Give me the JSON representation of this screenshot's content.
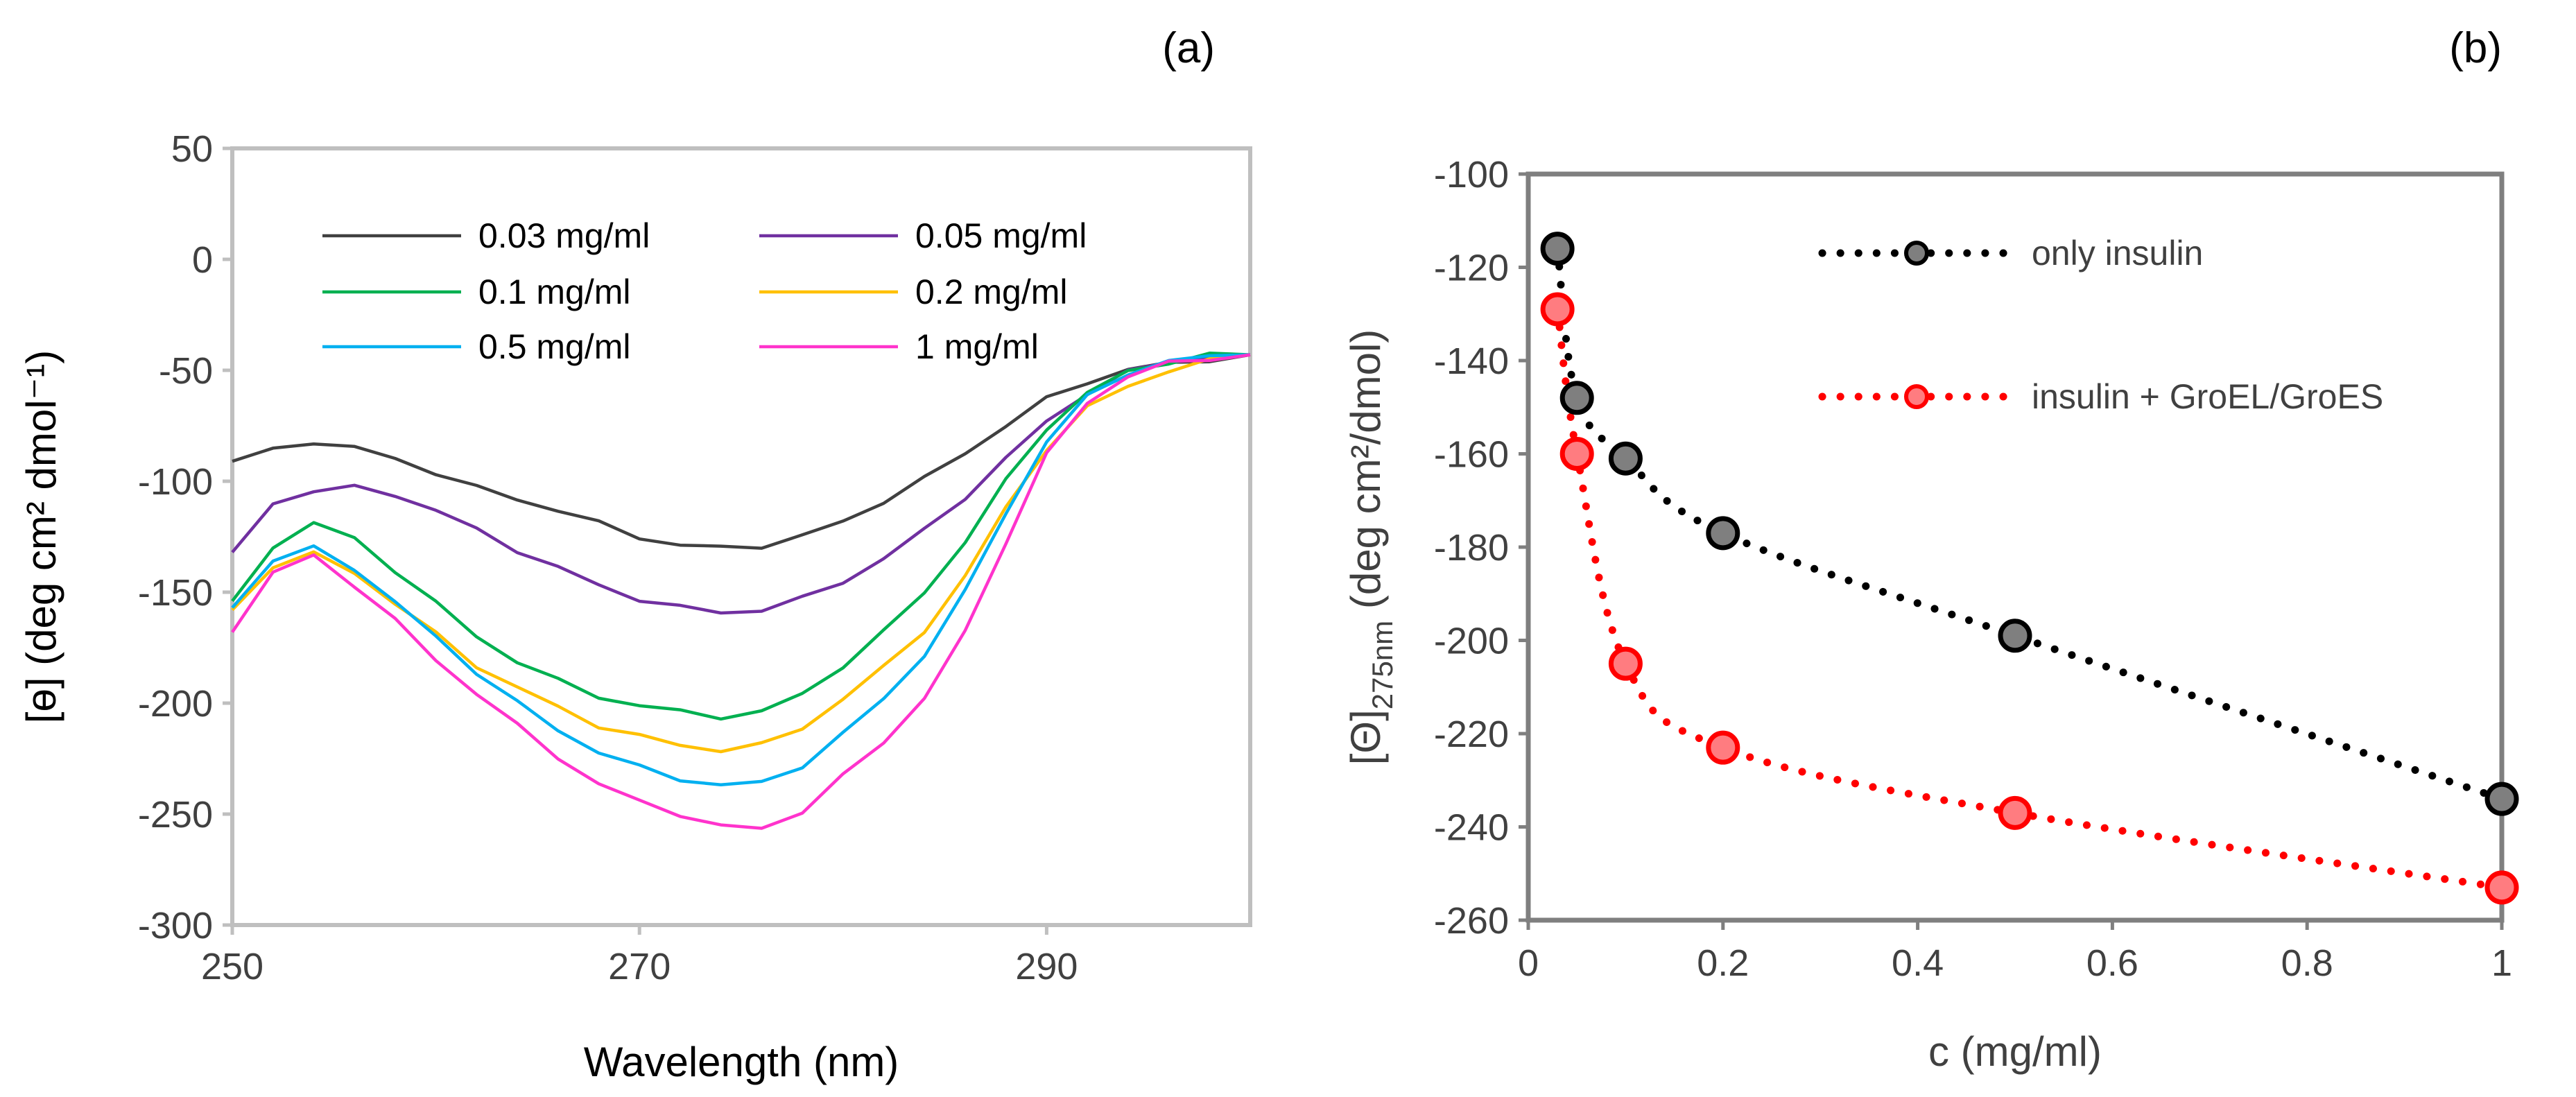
{
  "chart_data": [
    {
      "panel": "(a)",
      "type": "line",
      "xlabel": "Wavelength (nm)",
      "ylabel": "[ɵ] (deg cm² dmol⁻¹)",
      "xlim": [
        250,
        300
      ],
      "ylim": [
        -300,
        50
      ],
      "xticks": [
        250,
        270,
        290
      ],
      "xtick_labels": [
        "250",
        "270",
        "290"
      ],
      "yticks": [
        50,
        0,
        -50,
        -100,
        -150,
        -200,
        -250,
        -300
      ],
      "ytick_labels": [
        "50",
        "0",
        "-50",
        "-100",
        "-150",
        "-200",
        "-250",
        "-300"
      ],
      "legend_position": "top-center",
      "x": [
        250,
        252,
        254,
        256,
        258,
        260,
        262,
        264,
        266,
        268,
        270,
        272,
        274,
        276,
        278,
        280,
        282,
        284,
        286,
        288,
        290,
        292,
        294,
        296,
        298,
        300
      ],
      "series": [
        {
          "name": "0.03 mg/ml",
          "color": "#404040",
          "values": [
            -91,
            -86,
            -82,
            -85,
            -90,
            -96,
            -103,
            -108,
            -113,
            -119,
            -125,
            -129,
            -130,
            -129,
            -125,
            -118,
            -109,
            -99,
            -87,
            -75,
            -63,
            -55,
            -50,
            -47,
            -45,
            -43
          ]
        },
        {
          "name": "0.05 mg/ml",
          "color": "#7030a0",
          "values": [
            -132,
            -110,
            -104,
            -103,
            -106,
            -113,
            -122,
            -131,
            -139,
            -147,
            -153,
            -157,
            -159,
            -158,
            -153,
            -145,
            -135,
            -122,
            -107,
            -90,
            -73,
            -60,
            -51,
            -46,
            -44,
            -43
          ]
        },
        {
          "name": "0.1 mg/ml",
          "color": "#00b050",
          "values": [
            -154,
            -129,
            -119,
            -126,
            -140,
            -155,
            -170,
            -181,
            -190,
            -197,
            -201,
            -204,
            -206,
            -204,
            -196,
            -183,
            -168,
            -150,
            -127,
            -100,
            -76,
            -60,
            -51,
            -46,
            -43,
            -43
          ]
        },
        {
          "name": "0.2 mg/ml",
          "color": "#ffc000",
          "values": [
            -158,
            -138,
            -133,
            -141,
            -155,
            -169,
            -183,
            -193,
            -202,
            -210,
            -215,
            -219,
            -221,
            -219,
            -211,
            -198,
            -184,
            -167,
            -143,
            -112,
            -85,
            -67,
            -57,
            -50,
            -46,
            -43
          ]
        },
        {
          "name": "0.5 mg/ml",
          "color": "#00b0f0",
          "values": [
            -157,
            -136,
            -130,
            -139,
            -155,
            -170,
            -186,
            -200,
            -212,
            -222,
            -229,
            -234,
            -237,
            -236,
            -228,
            -214,
            -198,
            -178,
            -150,
            -114,
            -82,
            -62,
            -51,
            -46,
            -44,
            -43
          ]
        },
        {
          "name": "1 mg/ml",
          "color": "#ff33cc",
          "values": [
            -168,
            -142,
            -133,
            -147,
            -163,
            -180,
            -196,
            -210,
            -224,
            -237,
            -244,
            -250,
            -256,
            -256,
            -249,
            -233,
            -217,
            -198,
            -168,
            -127,
            -88,
            -65,
            -52,
            -47,
            -45,
            -43
          ]
        }
      ]
    },
    {
      "panel": "(b)",
      "type": "scatter",
      "xlabel": "c (mg/ml)",
      "ylabel_main": "[Θ]",
      "ylabel_sub": "275nm",
      "ylabel_rest": " (deg cm²/dmol)",
      "xlim": [
        0,
        1
      ],
      "ylim": [
        -260,
        -100
      ],
      "xticks": [
        0,
        0.2,
        0.4,
        0.6,
        0.8,
        1
      ],
      "xtick_labels": [
        "0",
        "0.2",
        "0.4",
        "0.6",
        "0.8",
        "1"
      ],
      "yticks": [
        -100,
        -120,
        -140,
        -160,
        -180,
        -200,
        -220,
        -240,
        -260
      ],
      "ytick_labels": [
        "-100",
        "-120",
        "-140",
        "-160",
        "-180",
        "-200",
        "-220",
        "-240",
        "-260"
      ],
      "legend_position": "top-right",
      "series": [
        {
          "name": "only insulin",
          "marker_fill": "#7f7f7f",
          "marker_edge": "#000000",
          "line_color": "#000000",
          "x": [
            0.03,
            0.05,
            0.1,
            0.2,
            0.5,
            1
          ],
          "y": [
            -116,
            -148,
            -161,
            -177,
            -199,
            -234
          ]
        },
        {
          "name": "insulin + GroEL/GroES",
          "marker_fill": "#ff7c80",
          "marker_edge": "#ff0000",
          "line_color": "#ff0000",
          "x": [
            0.03,
            0.05,
            0.1,
            0.2,
            0.5,
            1
          ],
          "y": [
            -129,
            -160,
            -205,
            -223,
            -237,
            -253
          ]
        }
      ]
    }
  ]
}
